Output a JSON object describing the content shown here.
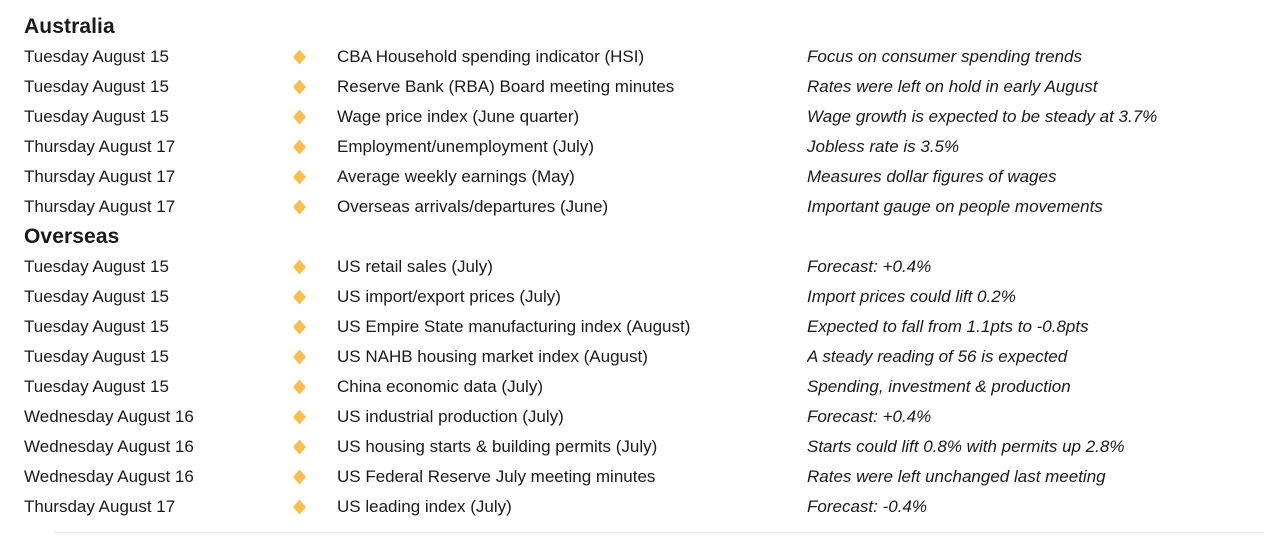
{
  "accent": {
    "bullet_color": "#F8BE4E",
    "text_color": "#1a1a1a"
  },
  "sections": [
    {
      "title": "Australia",
      "rows": [
        {
          "date": "Tuesday August 15",
          "event": "CBA Household spending indicator (HSI)",
          "comment": "Focus on consumer spending trends"
        },
        {
          "date": "Tuesday August 15",
          "event": "Reserve Bank (RBA) Board meeting minutes",
          "comment": "Rates were left on hold in early August"
        },
        {
          "date": "Tuesday August 15",
          "event": "Wage price index (June quarter)",
          "comment": "Wage growth is expected to be steady at 3.7%"
        },
        {
          "date": "Thursday August 17",
          "event": "Employment/unemployment (July)",
          "comment": "Jobless rate is 3.5%"
        },
        {
          "date": "Thursday August 17",
          "event": "Average weekly earnings (May)",
          "comment": "Measures dollar figures of wages"
        },
        {
          "date": "Thursday August 17",
          "event": "Overseas arrivals/departures (June)",
          "comment": "Important gauge on people movements"
        }
      ]
    },
    {
      "title": "Overseas",
      "rows": [
        {
          "date": "Tuesday August 15",
          "event": "US retail sales (July)",
          "comment": "Forecast: +0.4%"
        },
        {
          "date": "Tuesday August 15",
          "event": "US import/export prices (July)",
          "comment": "Import prices could lift 0.2%"
        },
        {
          "date": "Tuesday August 15",
          "event": "US Empire State manufacturing index (August)",
          "comment": "Expected to fall from 1.1pts to -0.8pts"
        },
        {
          "date": "Tuesday August 15",
          "event": "US NAHB housing market index (August)",
          "comment": "A steady reading of 56 is expected"
        },
        {
          "date": "Tuesday August 15",
          "event": "China economic data (July)",
          "comment": "Spending, investment & production"
        },
        {
          "date": "Wednesday August 16",
          "event": "US industrial production (July)",
          "comment": "Forecast: +0.4%"
        },
        {
          "date": "Wednesday August 16",
          "event": "US housing starts & building permits (July)",
          "comment": "Starts could lift 0.8% with permits up 2.8%"
        },
        {
          "date": "Wednesday August 16",
          "event": "US Federal Reserve July meeting minutes",
          "comment": "Rates were left unchanged last meeting"
        },
        {
          "date": "Thursday August 17",
          "event": "US leading index (July)",
          "comment": "Forecast: -0.4%"
        }
      ]
    }
  ]
}
